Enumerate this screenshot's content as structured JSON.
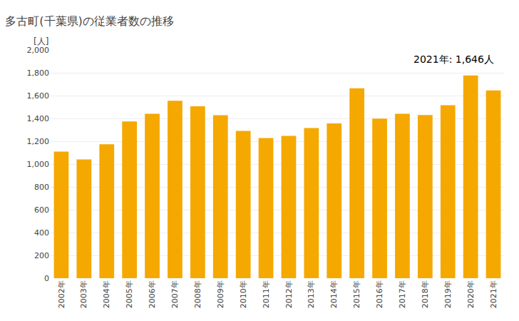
{
  "chart_data": {
    "type": "bar",
    "title": "多古町(千葉県)の従業者数の推移",
    "ylabel": "[人]",
    "annotation": "2021年: 1,646人",
    "categories": [
      "2002年",
      "2003年",
      "2004年",
      "2005年",
      "2006年",
      "2007年",
      "2008年",
      "2009年",
      "2010年",
      "2011年",
      "2012年",
      "2013年",
      "2014年",
      "2015年",
      "2016年",
      "2017年",
      "2018年",
      "2019年",
      "2020年",
      "2021年"
    ],
    "values": [
      1109,
      1040,
      1174,
      1374,
      1440,
      1554,
      1507,
      1428,
      1291,
      1228,
      1247,
      1316,
      1356,
      1664,
      1399,
      1440,
      1430,
      1516,
      1776,
      1646
    ],
    "color": "#F5A800",
    "ylim": [
      0,
      2000
    ],
    "yticks": [
      0,
      200,
      400,
      600,
      800,
      {
        "value": 1000,
        "label": "1,000"
      },
      {
        "value": 1200,
        "label": "1,200"
      },
      {
        "value": 1400,
        "label": "1,400"
      },
      {
        "value": 1600,
        "label": "1,600"
      },
      {
        "value": 1800,
        "label": "1,800"
      },
      {
        "value": 2000,
        "label": "2,000"
      }
    ],
    "grid": true
  }
}
